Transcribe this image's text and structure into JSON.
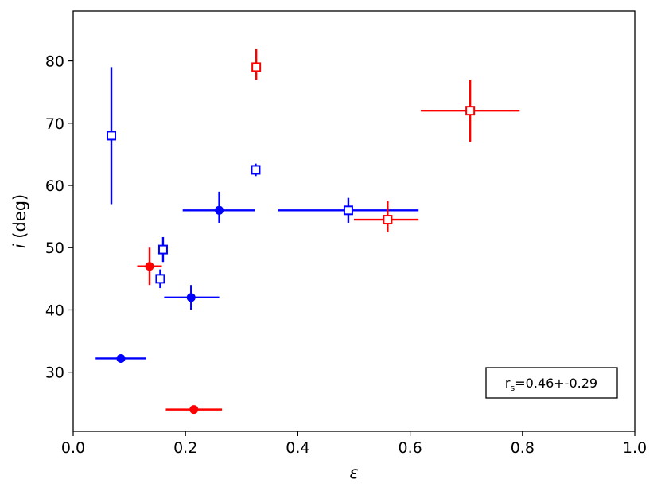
{
  "chart_data": {
    "type": "scatter",
    "title": "",
    "xlabel": "ε",
    "ylabel_symbol": "i",
    "ylabel_unit": " (deg)",
    "xlim": [
      0.0,
      1.0
    ],
    "ylim": [
      20.5,
      88
    ],
    "xticks": [
      0.0,
      0.2,
      0.4,
      0.6,
      0.8,
      1.0
    ],
    "xtick_labels": [
      "0.0",
      "0.2",
      "0.4",
      "0.6",
      "0.8",
      "1.0"
    ],
    "yticks": [
      30,
      40,
      50,
      60,
      70,
      80
    ],
    "ytick_labels": [
      "30",
      "40",
      "50",
      "60",
      "70",
      "80"
    ],
    "grid": false,
    "annotation": {
      "label_main": "r",
      "label_sub": "s",
      "label_rest": "=0.46+-0.29",
      "placement": "bottom-right"
    },
    "series": [
      {
        "color": "#0000ff",
        "marker": "filled-circle",
        "points": [
          {
            "x": 0.085,
            "y": 32.2,
            "xerr": [
              0.045,
              0.045
            ],
            "yerr": [
              0.5,
              0.5
            ]
          },
          {
            "x": 0.21,
            "y": 42.0,
            "xerr": [
              0.048,
              0.05
            ],
            "yerr": [
              2.0,
              2.0
            ]
          },
          {
            "x": 0.26,
            "y": 56.0,
            "xerr": [
              0.065,
              0.063
            ],
            "yerr": [
              2.0,
              3.0
            ]
          }
        ]
      },
      {
        "color": "#0000ff",
        "marker": "open-square",
        "points": [
          {
            "x": 0.068,
            "y": 68.0,
            "xerr": [
              0.0,
              0.0
            ],
            "yerr": [
              11.0,
              11.0
            ]
          },
          {
            "x": 0.155,
            "y": 45.0,
            "xerr": [
              0.0,
              0.0
            ],
            "yerr": [
              1.5,
              1.5
            ]
          },
          {
            "x": 0.16,
            "y": 49.7,
            "xerr": [
              0.0,
              0.0
            ],
            "yerr": [
              2.0,
              2.0
            ]
          },
          {
            "x": 0.325,
            "y": 62.5,
            "xerr": [
              0.0,
              0.0
            ],
            "yerr": [
              1.0,
              1.0
            ]
          },
          {
            "x": 0.49,
            "y": 56.0,
            "xerr": [
              0.125,
              0.125
            ],
            "yerr": [
              2.0,
              2.0
            ]
          }
        ]
      },
      {
        "color": "#ff0000",
        "marker": "filled-circle",
        "points": [
          {
            "x": 0.136,
            "y": 47.0,
            "xerr": [
              0.022,
              0.022
            ],
            "yerr": [
              3.0,
              3.0
            ]
          },
          {
            "x": 0.215,
            "y": 24.0,
            "xerr": [
              0.05,
              0.05
            ],
            "yerr": [
              0.0,
              0.0
            ]
          }
        ]
      },
      {
        "color": "#ff0000",
        "marker": "open-square",
        "points": [
          {
            "x": 0.326,
            "y": 79.0,
            "xerr": [
              0.0,
              0.0
            ],
            "yerr": [
              2.0,
              3.0
            ]
          },
          {
            "x": 0.56,
            "y": 54.5,
            "xerr": [
              0.06,
              0.055
            ],
            "yerr": [
              2.0,
              3.0
            ]
          },
          {
            "x": 0.707,
            "y": 72.0,
            "xerr": [
              0.088,
              0.088
            ],
            "yerr": [
              5.0,
              5.0
            ]
          }
        ]
      }
    ]
  }
}
